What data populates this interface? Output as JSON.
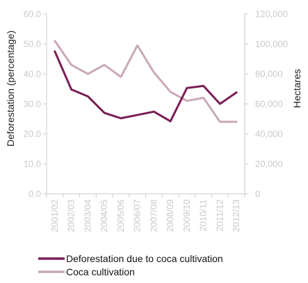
{
  "chart_data": {
    "type": "line",
    "categories": [
      "2001/02",
      "2002/03",
      "2003/04",
      "2004/05",
      "2005/06",
      "2006/07",
      "2007/08",
      "2008/09",
      "2009/10",
      "2010/11",
      "2011/12",
      "2012/13"
    ],
    "series": [
      {
        "name": "Deforestation due to coca cultivation",
        "axis": "left",
        "color": "#7a1e55",
        "values": [
          47.5,
          34.8,
          32.5,
          27.0,
          25.2,
          26.3,
          27.4,
          24.2,
          35.3,
          36.0,
          30.0,
          33.8
        ]
      },
      {
        "name": "Coca cultivation",
        "axis": "right",
        "color": "#c9a9b7",
        "values": [
          102000,
          86000,
          80000,
          86000,
          78000,
          99000,
          81000,
          68000,
          62000,
          64000,
          48000,
          48000
        ]
      }
    ],
    "left_axis": {
      "label": "Deforestation (percentage)",
      "range": [
        0,
        60
      ],
      "ticks": [
        "0.0",
        "10.0",
        "20.0",
        "30.0",
        "40.0",
        "50.0",
        "60.0"
      ]
    },
    "right_axis": {
      "label": "Hectares",
      "range": [
        0,
        120000
      ],
      "ticks": [
        "0",
        "20,000",
        "40,000",
        "60,000",
        "80,000",
        "100,000",
        "120,000"
      ]
    },
    "grid": false,
    "legend_position": "bottom-left",
    "colors": {
      "axis": "#c9c9c9",
      "tick_text": "#c9c9c9"
    }
  }
}
